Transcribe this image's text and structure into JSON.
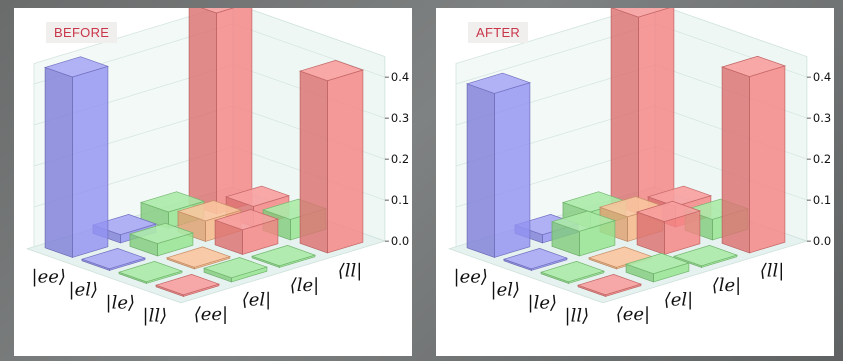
{
  "chart_data": [
    {
      "type": "bar3d",
      "title": "BEFORE",
      "row_labels": [
        "|ee⟩",
        "|el⟩",
        "|le⟩",
        "|ll⟩"
      ],
      "col_labels": [
        "⟨ee|",
        "⟨el|",
        "⟨le|",
        "⟨ll|"
      ],
      "zticks": [
        "0.0",
        "0.1",
        "0.2",
        "0.3",
        "0.4"
      ],
      "zlim": [
        0,
        0.45
      ],
      "values": [
        [
          0.44,
          0.02,
          0.04,
          0.49
        ],
        [
          0.0,
          0.03,
          0.05,
          0.05
        ],
        [
          0.0,
          0.0,
          0.06,
          0.05
        ],
        [
          0.0,
          0.01,
          0.0,
          0.42
        ]
      ],
      "colors": [
        "#8d8df0",
        "#8fe38a",
        "#f7b27f",
        "#f47e7e"
      ]
    },
    {
      "type": "bar3d",
      "title": "AFTER",
      "row_labels": [
        "|ee⟩",
        "|el⟩",
        "|le⟩",
        "|ll⟩"
      ],
      "col_labels": [
        "⟨ee|",
        "⟨el|",
        "⟨le|",
        "⟨ll|"
      ],
      "zticks": [
        "0.0",
        "0.1",
        "0.2",
        "0.3",
        "0.4"
      ],
      "zlim": [
        0,
        0.45
      ],
      "values": [
        [
          0.4,
          0.02,
          0.04,
          0.48
        ],
        [
          0.0,
          0.06,
          0.06,
          0.05
        ],
        [
          0.0,
          0.0,
          0.08,
          0.05
        ],
        [
          0.0,
          0.02,
          0.0,
          0.43
        ]
      ],
      "colors": [
        "#8d8df0",
        "#8fe38a",
        "#f7b27f",
        "#f47e7e"
      ]
    }
  ]
}
